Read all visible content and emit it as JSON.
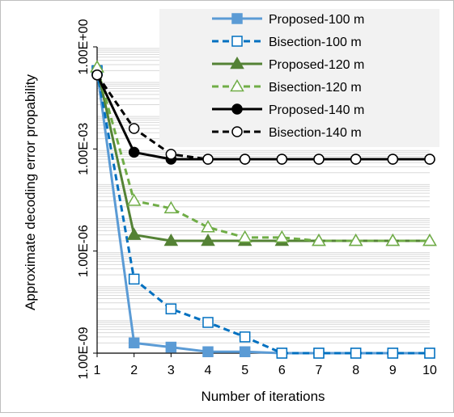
{
  "chart_data": {
    "type": "line",
    "title": "",
    "xlabel": "Number of iterations",
    "ylabel": "Approximate decoding error propability",
    "x": [
      1,
      2,
      3,
      4,
      5,
      6,
      7,
      8,
      9,
      10
    ],
    "xlim": [
      1,
      10
    ],
    "ylim": [
      1e-09,
      1
    ],
    "yscale": "log",
    "x_ticks": [
      "1",
      "2",
      "3",
      "4",
      "5",
      "6",
      "7",
      "8",
      "9",
      "10"
    ],
    "y_ticks": [
      "1.00E-09",
      "1.00E-06",
      "1.00E-03",
      "1.00E+00"
    ],
    "grid": "horizontal minor gridlines",
    "legend_position": "top-right",
    "series": [
      {
        "name": "Proposed-100 m",
        "color": "#5B9BD5",
        "line": "solid",
        "marker": "square",
        "filled": true,
        "values": [
          0.2,
          2e-09,
          1.5e-09,
          1.1e-09,
          1.1e-09,
          1e-09,
          1e-09,
          1e-09,
          1e-09,
          1e-09
        ]
      },
      {
        "name": "Bisection-100 m",
        "color": "#0070C0",
        "line": "dashed",
        "marker": "square",
        "filled": false,
        "values": [
          0.2,
          1.5e-07,
          2e-08,
          8e-09,
          3e-09,
          1e-09,
          1e-09,
          1e-09,
          1e-09,
          1e-09
        ]
      },
      {
        "name": "Proposed-120 m",
        "color": "#548235",
        "line": "solid",
        "marker": "triangle",
        "filled": true,
        "values": [
          0.25,
          3e-06,
          2e-06,
          2e-06,
          2e-06,
          2e-06,
          2e-06,
          2e-06,
          2e-06,
          2e-06
        ]
      },
      {
        "name": "Bisection-120 m",
        "color": "#70AD47",
        "line": "dashed",
        "marker": "triangle",
        "filled": false,
        "values": [
          0.25,
          3e-05,
          1.8e-05,
          5e-06,
          2.5e-06,
          2.5e-06,
          2e-06,
          2e-06,
          2e-06,
          2e-06
        ]
      },
      {
        "name": "Proposed-140 m",
        "color": "#000000",
        "line": "solid",
        "marker": "circle",
        "filled": true,
        "values": [
          0.15,
          0.0008,
          0.0005,
          0.0005,
          0.0005,
          0.0005,
          0.0005,
          0.0005,
          0.0005,
          0.0005
        ]
      },
      {
        "name": "Bisection-140 m",
        "color": "#000000",
        "line": "dashed",
        "marker": "circle",
        "filled": false,
        "values": [
          0.15,
          0.004,
          0.0007,
          0.0005,
          0.0005,
          0.0005,
          0.0005,
          0.0005,
          0.0005,
          0.0005
        ]
      }
    ]
  }
}
